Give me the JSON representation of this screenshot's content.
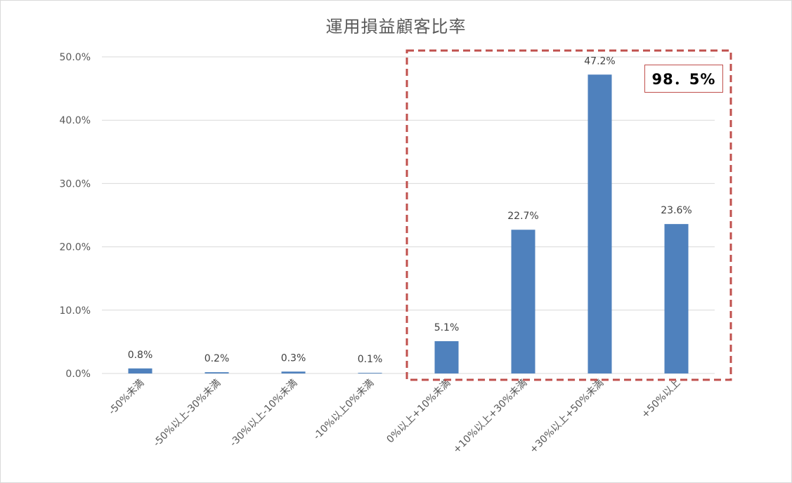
{
  "chart_data": {
    "type": "bar",
    "title": "運用損益顧客比率",
    "xlabel": "",
    "ylabel": "",
    "ylim": [
      0,
      50
    ],
    "yticks": [
      "0.0%",
      "10.0%",
      "20.0%",
      "30.0%",
      "40.0%",
      "50.0%"
    ],
    "categories": [
      "-50%未満",
      "-50%以上-30%未満",
      "-30%以上-10%未満",
      "-10%以上0%未満",
      "0%以上+10%未満",
      "+10%以上+30%未満",
      "+30%以上+50%未満",
      "+50%以上"
    ],
    "values": [
      0.8,
      0.2,
      0.3,
      0.1,
      5.1,
      22.7,
      47.2,
      23.6
    ],
    "data_labels": [
      "0.8%",
      "0.2%",
      "0.3%",
      "0.1%",
      "5.1%",
      "22.7%",
      "47.2%",
      "23.6%"
    ],
    "grid": true,
    "bar_color": "#4f81bd",
    "highlight": {
      "label": "98．5%",
      "color": "#c0504d",
      "from_category_index": 4,
      "to_category_index": 7
    }
  }
}
